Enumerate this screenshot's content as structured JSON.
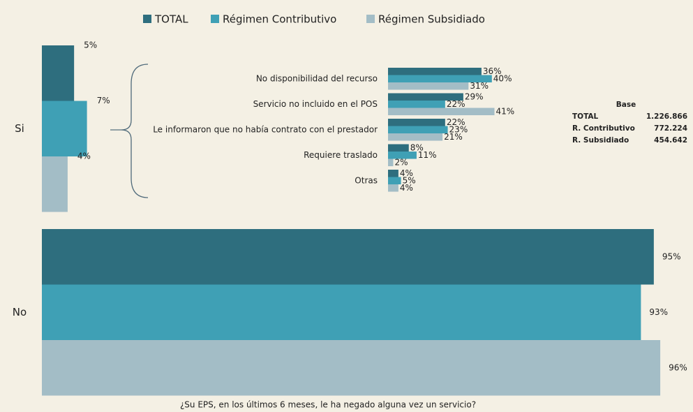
{
  "chart_data": [
    {
      "type": "bar",
      "horizontal": true,
      "categories": [
        "Si",
        "No"
      ],
      "xlim": [
        0,
        100
      ],
      "series": [
        {
          "name": "TOTAL",
          "color": "#2e6e7e",
          "values": [
            5,
            95
          ],
          "value_labels": [
            "5%",
            "95%"
          ]
        },
        {
          "name": "Régimen Contributivo",
          "color": "#3fa0b5",
          "values": [
            7,
            93
          ],
          "value_labels": [
            "7%",
            "93%"
          ]
        },
        {
          "name": "Régimen Subsidiado",
          "color": "#a3bdc6",
          "values": [
            4,
            96
          ],
          "value_labels": [
            "4%",
            "96%"
          ]
        }
      ],
      "caption": "¿Su EPS, en los últimos 6 meses, le ha negado alguna vez un servicio?"
    },
    {
      "type": "bar",
      "horizontal": true,
      "categories": [
        "No disponibilidad del recurso",
        "Servicio no incluido en el POS",
        "Le informaron que no había contrato con el prestador",
        "Requiere traslado",
        "Otras"
      ],
      "xlim": [
        0,
        100
      ],
      "series": [
        {
          "color": "#2e6e7e",
          "values": [
            36,
            29,
            22,
            8,
            4
          ],
          "value_labels": [
            "36%",
            "29%",
            "22%",
            "8%",
            "4%"
          ]
        },
        {
          "color": "#3fa0b5",
          "values": [
            40,
            22,
            23,
            11,
            5
          ],
          "value_labels": [
            "40%",
            "22%",
            "23%",
            "11%",
            "5%"
          ]
        },
        {
          "color": "#a3bdc6",
          "values": [
            31,
            41,
            21,
            2,
            4
          ],
          "value_labels": [
            "31%",
            "41%",
            "21%",
            "2%",
            "4%"
          ]
        }
      ]
    }
  ],
  "base_table": {
    "title": "Base",
    "rows": [
      [
        "TOTAL",
        "1.226.866"
      ],
      [
        "R. Contributivo",
        "772.224"
      ],
      [
        "R. Subsidiado",
        "454.642"
      ]
    ]
  }
}
